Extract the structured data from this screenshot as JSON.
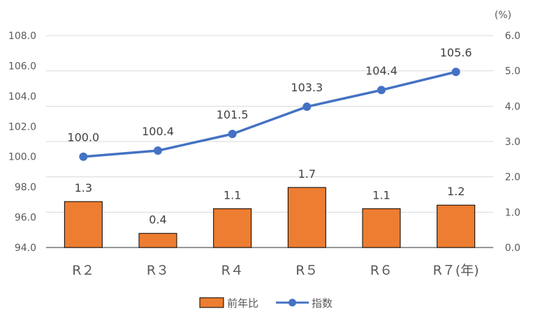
{
  "chart_data": {
    "type": "bar",
    "categories": [
      "R２",
      "R３",
      "R４",
      "R５",
      "R６",
      "R７(年)"
    ],
    "series": [
      {
        "name": "前年比",
        "type": "bar",
        "axis": "right",
        "color": "#ED7D31",
        "values": [
          1.3,
          0.4,
          1.1,
          1.7,
          1.1,
          1.2
        ],
        "labels": [
          "1.3",
          "0.4",
          "1.1",
          "1.7",
          "1.1",
          "1.2"
        ]
      },
      {
        "name": "指数",
        "type": "line",
        "axis": "left",
        "color": "#4472C4",
        "values": [
          100.0,
          100.4,
          101.5,
          103.3,
          104.4,
          105.6
        ],
        "labels": [
          "100.0",
          "100.4",
          "101.5",
          "103.3",
          "104.4",
          "105.6"
        ]
      }
    ],
    "left_axis": {
      "min": 94.0,
      "max": 108.0,
      "ticks": [
        "94.0",
        "96.0",
        "98.0",
        "100.0",
        "102.0",
        "104.0",
        "106.0",
        "108.0"
      ]
    },
    "right_axis": {
      "min": 0.0,
      "max": 6.0,
      "unit": "(%)",
      "ticks": [
        "0.0",
        "1.0",
        "2.0",
        "3.0",
        "4.0",
        "5.0",
        "6.0"
      ]
    },
    "grid": true,
    "legend_position": "bottom"
  }
}
